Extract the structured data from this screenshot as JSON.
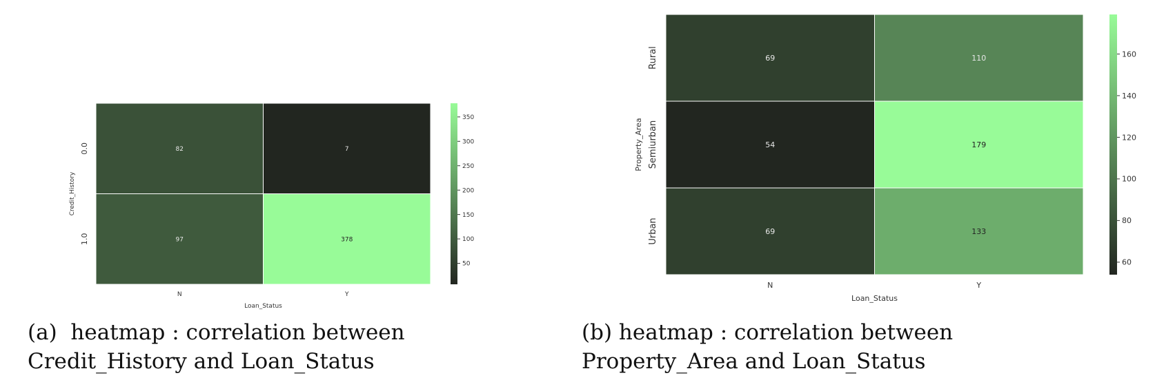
{
  "captions": {
    "a": {
      "label": "(a)",
      "line1": "heatmap : correlation between",
      "line2": "Credit_History and Loan_Status"
    },
    "b": {
      "label": "(b)",
      "line1": "heatmap : correlation between",
      "line2": "Property_Area and Loan_Status"
    }
  },
  "chart_data": [
    {
      "type": "heatmap",
      "xlabel": "Loan_Status",
      "ylabel": "Credit_History",
      "x_categories": [
        "N",
        "Y"
      ],
      "y_categories": [
        "0.0",
        "1.0"
      ],
      "values": [
        [
          82,
          7
        ],
        [
          97,
          378
        ]
      ],
      "colorbar": {
        "min": 7,
        "max": 378,
        "ticks": [
          50,
          100,
          150,
          200,
          250,
          300,
          350
        ]
      },
      "colors": {
        "low": "#222620",
        "high": "#98fb98"
      },
      "annotations": true
    },
    {
      "type": "heatmap",
      "xlabel": "Loan_Status",
      "ylabel": "Property_Area",
      "x_categories": [
        "N",
        "Y"
      ],
      "y_categories": [
        "Rural",
        "Semiurban",
        "Urban"
      ],
      "values": [
        [
          69,
          110
        ],
        [
          54,
          179
        ],
        [
          69,
          133
        ]
      ],
      "colorbar": {
        "min": 54,
        "max": 179,
        "ticks": [
          60,
          80,
          100,
          120,
          140,
          160
        ]
      },
      "colors": {
        "low": "#222620",
        "high": "#98fb98"
      },
      "annotations": true
    }
  ]
}
